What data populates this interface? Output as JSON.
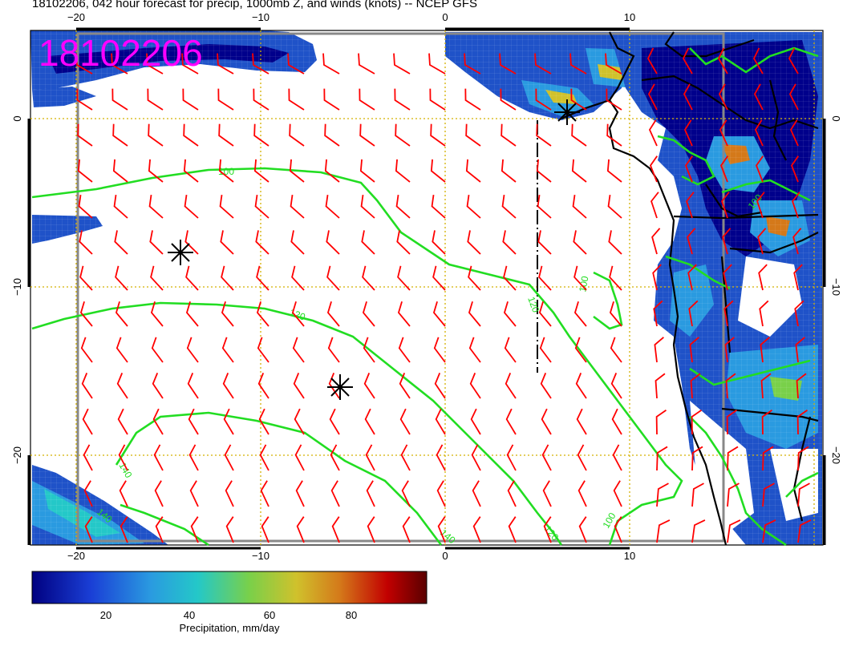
{
  "title": "18102206, 042 hour forecast for precip, 1000mb Z, and winds (knots) -- NCEP GFS",
  "stamp": "18102206",
  "axis": {
    "top_lon_labels": [
      "−20",
      "−10",
      "0",
      "10"
    ],
    "bottom_lon_labels": [
      "−20",
      "−10",
      "0",
      "10"
    ],
    "left_lat_labels": [
      "0",
      "−10",
      "−20"
    ],
    "right_lat_labels": [
      "0",
      "−10",
      "−20"
    ]
  },
  "contours": {
    "color": "#22dd22",
    "labels": [
      "100",
      "120",
      "140",
      "120",
      "100",
      "140",
      "140",
      "100",
      "120",
      "100"
    ]
  },
  "wind_barb_color": "#ff0000",
  "precip_colors": [
    "#00008b",
    "#1f52c8",
    "#2a9ae0",
    "#24c8c8",
    "#79d04a",
    "#d0c12c",
    "#d4791a",
    "#c20000",
    "#6b0000"
  ],
  "colorbar": {
    "label": "Precipitation, mm/day",
    "ticks": [
      "20",
      "40",
      "60",
      "80"
    ]
  }
}
